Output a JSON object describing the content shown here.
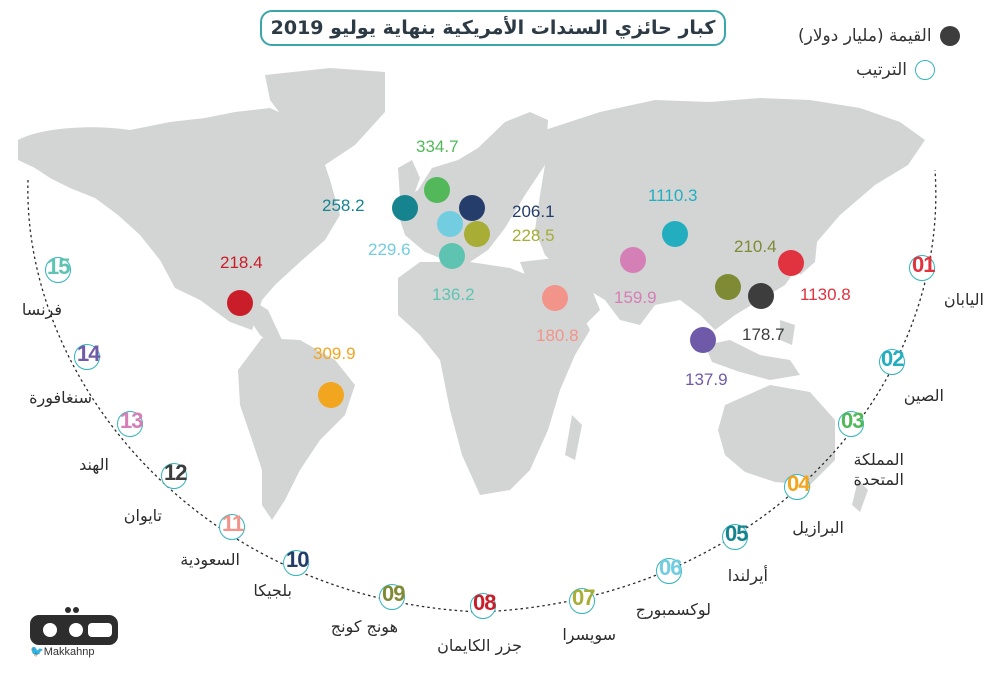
{
  "title": "كبار حائزي السندات الأمريكية بنهاية يوليو 2019",
  "legend": {
    "value_label": "القيمة (مليار دولار)",
    "rank_label": "الترتيب",
    "value_color": "#3d3d3d",
    "rank_color": "#33b5bd"
  },
  "countries": [
    {
      "rank": "01",
      "name": "اليابان",
      "value": "1130.8",
      "color": "#e0323f"
    },
    {
      "rank": "02",
      "name": "الصين",
      "value": "1110.3",
      "color": "#23aec0"
    },
    {
      "rank": "03",
      "name": "المملكة\nالمتحدة",
      "value": "334.7",
      "color": "#52b85a"
    },
    {
      "rank": "04",
      "name": "البرازيل",
      "value": "309.9",
      "color": "#f2a51f"
    },
    {
      "rank": "05",
      "name": "أيرلندا",
      "value": "258.2",
      "color": "#16848f"
    },
    {
      "rank": "06",
      "name": "لوكسمبورج",
      "value": "229.6",
      "color": "#73cde0"
    },
    {
      "rank": "07",
      "name": "سويسرا",
      "value": "228.5",
      "color": "#a7ad35"
    },
    {
      "rank": "08",
      "name": "جزر الكايمان",
      "value": "218.4",
      "color": "#c91d2a"
    },
    {
      "rank": "09",
      "name": "هونج كونج",
      "value": "210.4",
      "color": "#7f8a35"
    },
    {
      "rank": "10",
      "name": "بلجيكا",
      "value": "206.1",
      "color": "#243d6b"
    },
    {
      "rank": "11",
      "name": "السعودية",
      "value": "180.8",
      "color": "#f2948a"
    },
    {
      "rank": "12",
      "name": "تايوان",
      "value": "178.7",
      "color": "#3d3d3d"
    },
    {
      "rank": "13",
      "name": "الهند",
      "value": "159.9",
      "color": "#d47fb6"
    },
    {
      "rank": "14",
      "name": "سنغافورة",
      "value": "137.9",
      "color": "#6f5aaa"
    },
    {
      "rank": "15",
      "name": "فرنسا",
      "value": "136.2",
      "color": "#5ec4b1"
    }
  ],
  "logo": {
    "text": "مكة",
    "handle": "Makkahnp"
  }
}
